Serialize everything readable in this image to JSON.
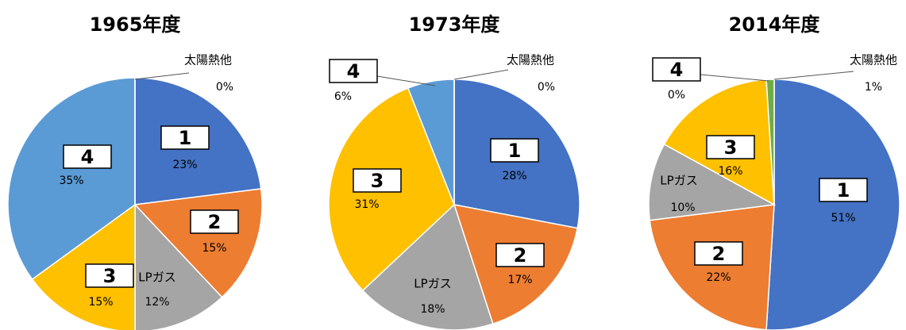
{
  "chart_data": [
    {
      "type": "pie",
      "title": "1965年度",
      "categories": [
        "1",
        "2",
        "LPガス",
        "3",
        "4",
        "太陽熱他"
      ],
      "values": [
        23,
        15,
        12,
        15,
        35,
        0
      ],
      "value_labels": [
        "23%",
        "15%",
        "12%",
        "15%",
        "35%",
        "0%"
      ],
      "colors": [
        "#4472c4",
        "#ed7d31",
        "#a5a5a5",
        "#ffc000",
        "#5b9bd5",
        "#70ad47"
      ]
    },
    {
      "type": "pie",
      "title": "1973年度",
      "categories": [
        "1",
        "2",
        "LPガス",
        "3",
        "4",
        "太陽熱他"
      ],
      "values": [
        28,
        17,
        18,
        31,
        6,
        0
      ],
      "value_labels": [
        "28%",
        "17%",
        "18%",
        "31%",
        "6%",
        "0%"
      ],
      "colors": [
        "#4472c4",
        "#ed7d31",
        "#a5a5a5",
        "#ffc000",
        "#5b9bd5",
        "#70ad47"
      ]
    },
    {
      "type": "pie",
      "title": "2014年度",
      "categories": [
        "1",
        "2",
        "LPガス",
        "3",
        "4",
        "太陽熱他"
      ],
      "values": [
        51,
        22,
        10,
        16,
        0,
        1
      ],
      "value_labels": [
        "51%",
        "22%",
        "10%",
        "16%",
        "0%",
        "1%"
      ],
      "colors": [
        "#4472c4",
        "#ed7d31",
        "#a5a5a5",
        "#ffc000",
        "#5b9bd5",
        "#70ad47"
      ]
    }
  ]
}
